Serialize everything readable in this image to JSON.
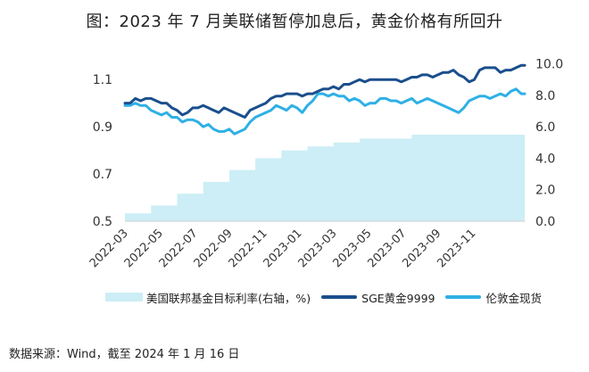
{
  "title": "图：2023 年 7 月美联储暂停加息后，黄金价格有所回升",
  "source": "数据来源：Wind，截至 2024 年 1 月 16 日",
  "chart_data": {
    "type": "line+area",
    "title": "图：2023 年 7 月美联储暂停加息后，黄金价格有所回升",
    "x_range": [
      "2022-03",
      "2024-01"
    ],
    "x_ticks": [
      "2022-03",
      "2022-05",
      "2022-07",
      "2022-09",
      "2022-11",
      "2023-01",
      "2023-03",
      "2023-05",
      "2023-07",
      "2023-09",
      "2023-11"
    ],
    "y_left": {
      "ticks": [
        0.5,
        0.7,
        0.9,
        1.1
      ],
      "ylim": [
        0.5,
        1.18
      ]
    },
    "y_right": {
      "ticks": [
        "0.0",
        "2.0",
        "4.0",
        "6.0",
        "8.0",
        "10.0"
      ],
      "ylim": [
        0,
        10.2
      ]
    },
    "grid": false,
    "legend_position": "bottom",
    "colors": {
      "fed": "#cdeef6",
      "sge": "#1b4f8c",
      "lundun": "#2fb0e5"
    },
    "series": [
      {
        "name": "美国联邦基金目标利率(右轴，%)",
        "axis": "right",
        "kind": "step-area",
        "x": [
          0,
          1.5,
          3,
          4.5,
          6,
          7.5,
          9,
          10.5,
          12,
          13.5,
          15,
          16.5,
          23
        ],
        "values": [
          0.5,
          1.0,
          1.75,
          2.5,
          3.25,
          4.0,
          4.5,
          4.75,
          5.0,
          5.25,
          5.25,
          5.5,
          5.5
        ]
      },
      {
        "name": "SGE黄金9999",
        "axis": "left",
        "kind": "line",
        "x": [
          0,
          0.3,
          0.6,
          0.9,
          1.2,
          1.5,
          1.8,
          2.1,
          2.4,
          2.7,
          3.0,
          3.3,
          3.6,
          3.9,
          4.2,
          4.5,
          4.8,
          5.1,
          5.4,
          5.7,
          6.0,
          6.3,
          6.6,
          6.9,
          7.2,
          7.5,
          7.8,
          8.1,
          8.4,
          8.7,
          9.0,
          9.3,
          9.6,
          9.9,
          10.2,
          10.5,
          10.8,
          11.1,
          11.4,
          11.7,
          12.0,
          12.3,
          12.6,
          12.9,
          13.2,
          13.5,
          13.8,
          14.1,
          14.4,
          14.7,
          15.0,
          15.3,
          15.6,
          15.9,
          16.2,
          16.5,
          16.8,
          17.1,
          17.4,
          17.7,
          18.0,
          18.3,
          18.6,
          18.9,
          19.2,
          19.5,
          19.8,
          20.1,
          20.4,
          20.7,
          21.0,
          21.3,
          21.6,
          21.9,
          22.2,
          22.5,
          22.8,
          23.0
        ],
        "values": [
          1.0,
          1.0,
          1.02,
          1.01,
          1.02,
          1.02,
          1.01,
          1.0,
          1.0,
          0.98,
          0.97,
          0.95,
          0.96,
          0.98,
          0.98,
          0.99,
          0.98,
          0.97,
          0.96,
          0.98,
          0.97,
          0.96,
          0.95,
          0.94,
          0.97,
          0.98,
          0.99,
          1.0,
          1.02,
          1.03,
          1.03,
          1.04,
          1.04,
          1.04,
          1.03,
          1.04,
          1.04,
          1.05,
          1.06,
          1.06,
          1.07,
          1.06,
          1.08,
          1.08,
          1.09,
          1.1,
          1.09,
          1.1,
          1.1,
          1.1,
          1.1,
          1.1,
          1.1,
          1.09,
          1.1,
          1.11,
          1.11,
          1.12,
          1.12,
          1.11,
          1.12,
          1.13,
          1.13,
          1.14,
          1.12,
          1.11,
          1.09,
          1.1,
          1.14,
          1.15,
          1.15,
          1.15,
          1.13,
          1.14,
          1.14,
          1.15,
          1.16,
          1.16
        ]
      },
      {
        "name": "伦敦金现货",
        "axis": "left",
        "kind": "line",
        "x": [
          0,
          0.3,
          0.6,
          0.9,
          1.2,
          1.5,
          1.8,
          2.1,
          2.4,
          2.7,
          3.0,
          3.3,
          3.6,
          3.9,
          4.2,
          4.5,
          4.8,
          5.1,
          5.4,
          5.7,
          6.0,
          6.3,
          6.6,
          6.9,
          7.2,
          7.5,
          7.8,
          8.1,
          8.4,
          8.7,
          9.0,
          9.3,
          9.6,
          9.9,
          10.2,
          10.5,
          10.8,
          11.1,
          11.4,
          11.7,
          12.0,
          12.3,
          12.6,
          12.9,
          13.2,
          13.5,
          13.8,
          14.1,
          14.4,
          14.7,
          15.0,
          15.3,
          15.6,
          15.9,
          16.2,
          16.5,
          16.8,
          17.1,
          17.4,
          17.7,
          18.0,
          18.3,
          18.6,
          18.9,
          19.2,
          19.5,
          19.8,
          20.1,
          20.4,
          20.7,
          21.0,
          21.3,
          21.6,
          21.9,
          22.2,
          22.5,
          22.8,
          23.0
        ],
        "values": [
          0.99,
          0.99,
          1.0,
          0.99,
          0.99,
          0.97,
          0.96,
          0.95,
          0.96,
          0.94,
          0.94,
          0.92,
          0.93,
          0.93,
          0.92,
          0.9,
          0.91,
          0.89,
          0.88,
          0.88,
          0.89,
          0.87,
          0.88,
          0.89,
          0.92,
          0.94,
          0.95,
          0.96,
          0.97,
          0.99,
          0.98,
          0.97,
          0.99,
          0.98,
          0.96,
          0.99,
          1.01,
          1.04,
          1.04,
          1.03,
          1.04,
          1.03,
          1.03,
          1.01,
          1.02,
          1.01,
          0.99,
          1.0,
          1.0,
          1.02,
          1.02,
          1.01,
          1.01,
          1.0,
          1.01,
          1.02,
          1.0,
          1.01,
          1.02,
          1.01,
          1.0,
          0.99,
          0.98,
          0.97,
          0.96,
          0.98,
          1.01,
          1.02,
          1.03,
          1.03,
          1.02,
          1.03,
          1.04,
          1.03,
          1.05,
          1.06,
          1.04,
          1.04
        ]
      }
    ]
  }
}
